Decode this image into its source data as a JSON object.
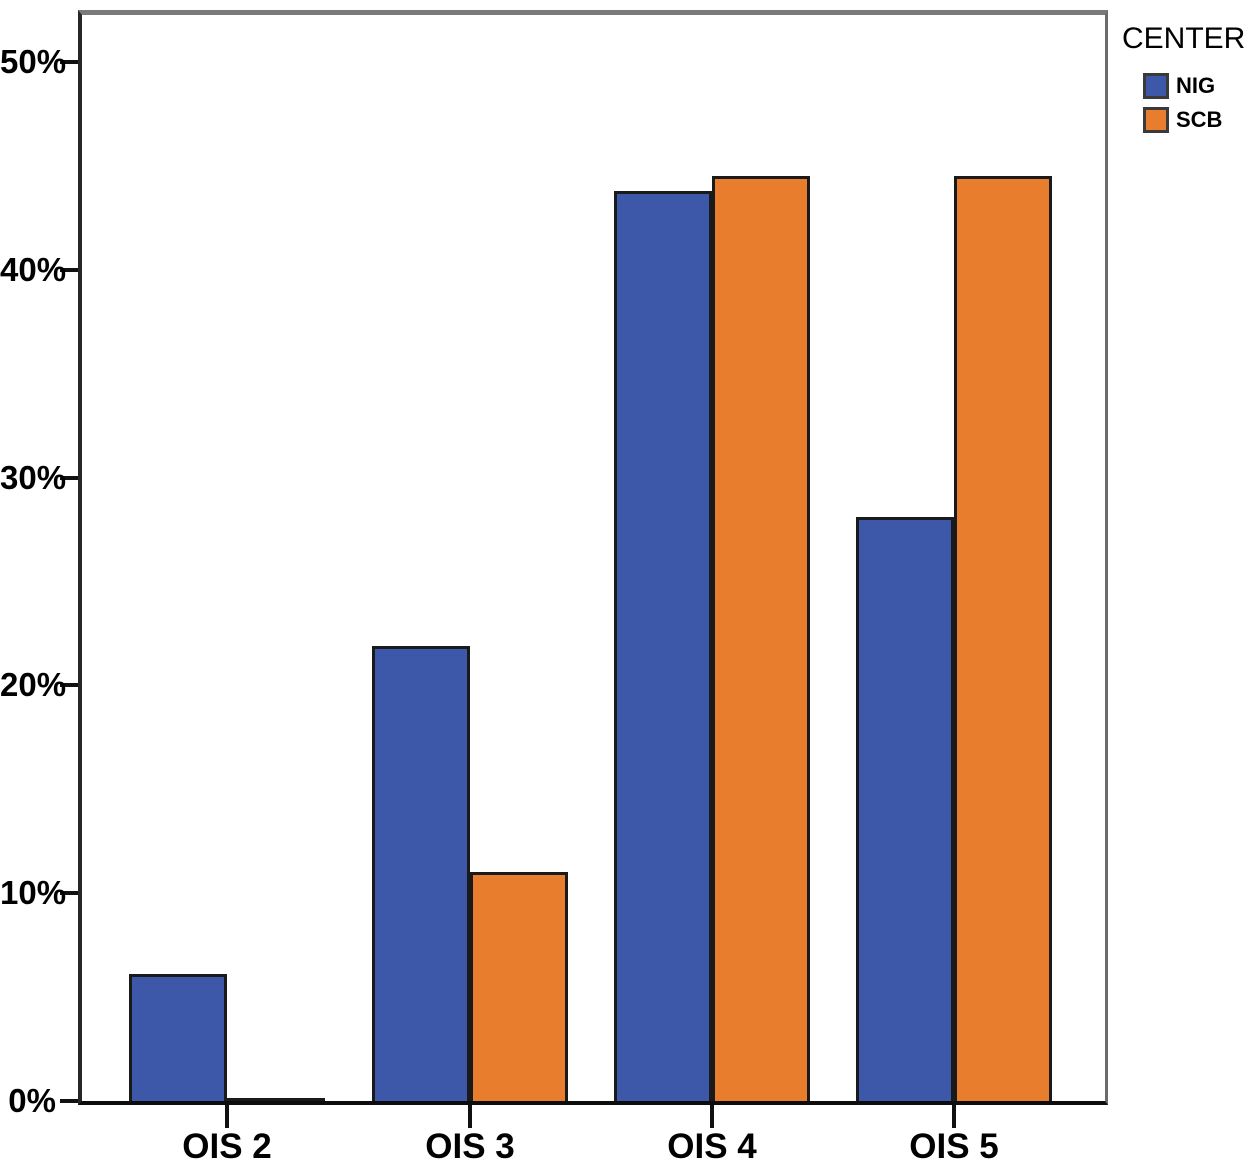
{
  "chart_data": {
    "type": "bar",
    "title": "",
    "xlabel": "",
    "ylabel": "",
    "categories": [
      "OIS 2",
      "OIS 3",
      "OIS 4",
      "OIS 5"
    ],
    "series": [
      {
        "name": "NIG",
        "color": "#3D58A8",
        "values": [
          6.1,
          21.9,
          43.8,
          28.1
        ]
      },
      {
        "name": "SCB",
        "color": "#E87E2D",
        "values": [
          0.1,
          11.0,
          44.5,
          44.5
        ]
      }
    ],
    "legend_title": "CENTER",
    "legend_position": "top-right",
    "y_ticks": [
      "0%",
      "10%",
      "20%",
      "30%",
      "40%",
      "50%"
    ],
    "y_tick_values": [
      0,
      10,
      20,
      30,
      40,
      50
    ],
    "ylim": [
      0,
      52.3
    ],
    "grid": false,
    "bar_outline_color": "#1a1a1a"
  }
}
